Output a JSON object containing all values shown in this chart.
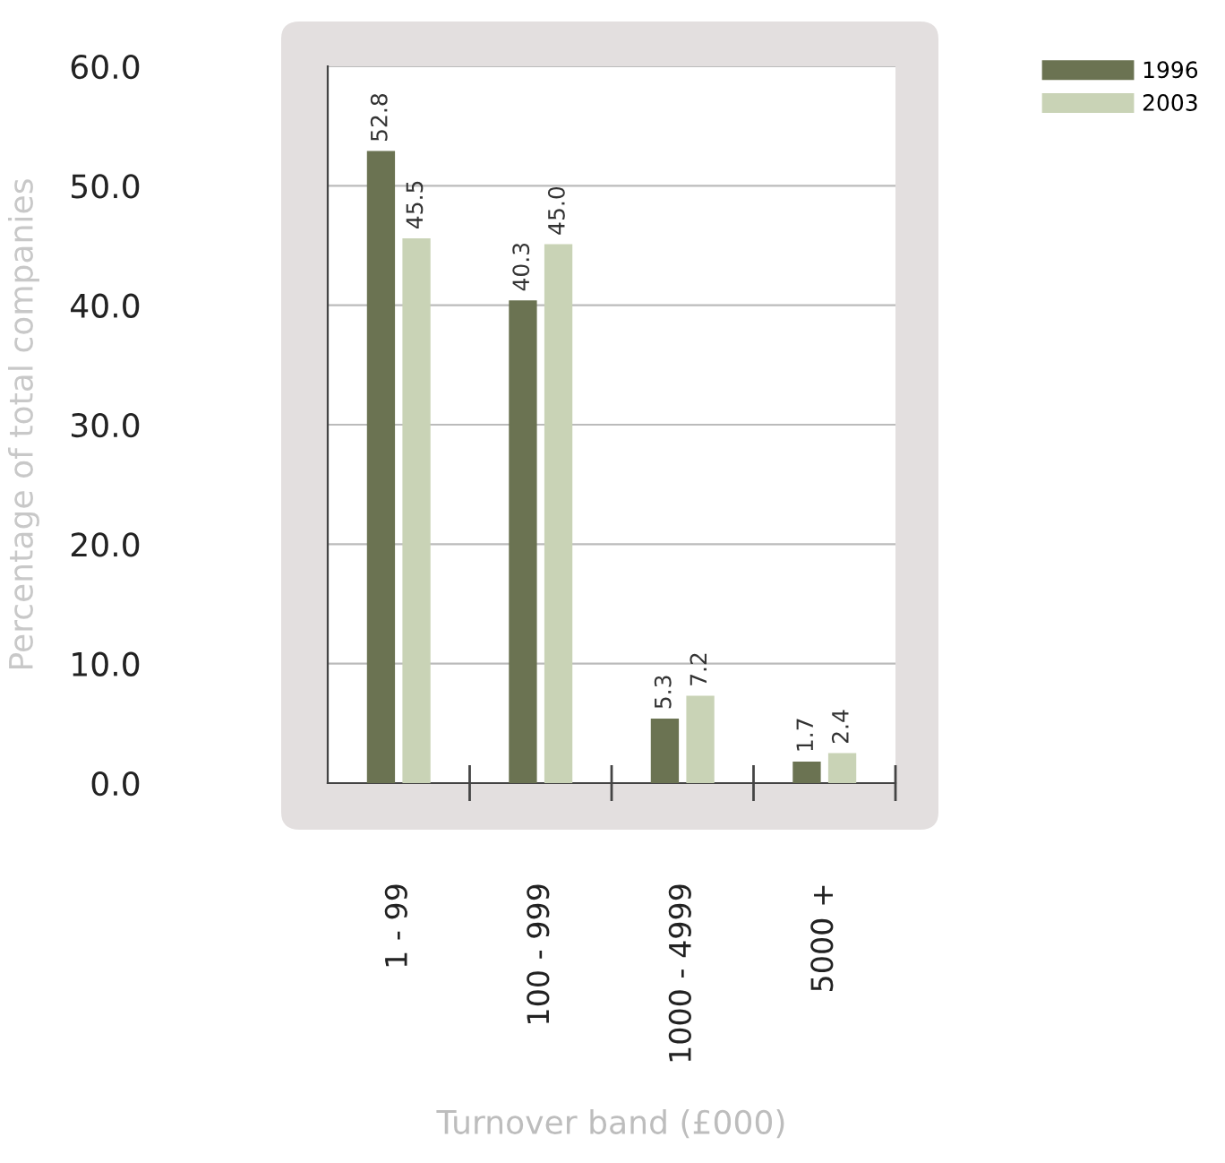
{
  "chart_data": {
    "type": "bar",
    "xlabel": "Turnover band (£000)",
    "ylabel": "Percentage of total companies",
    "categories": [
      "1 - 99",
      "100 - 999",
      "1000 - 4999",
      "5000 +"
    ],
    "series": [
      {
        "name": "1996",
        "color": "#6b7352",
        "values": [
          52.8,
          40.3,
          5.3,
          1.7
        ]
      },
      {
        "name": "2003",
        "color": "#c9d3b6",
        "values": [
          45.5,
          45.0,
          7.2,
          2.4
        ],
        "value_labels": [
          "45.5",
          "45.0",
          "7.2",
          "2.4"
        ]
      }
    ],
    "ylim": [
      0,
      60
    ],
    "yticks": [
      {
        "value": 0,
        "label": "0.0"
      },
      {
        "value": 10,
        "label": "10.0"
      },
      {
        "value": 20,
        "label": "20.0"
      },
      {
        "value": 30,
        "label": "30.0"
      },
      {
        "value": 40,
        "label": "40.0"
      },
      {
        "value": 50,
        "label": "50.0"
      },
      {
        "value": 60,
        "label": "60.0"
      }
    ],
    "grid": "y",
    "legend": "top right",
    "data_labels": true
  }
}
